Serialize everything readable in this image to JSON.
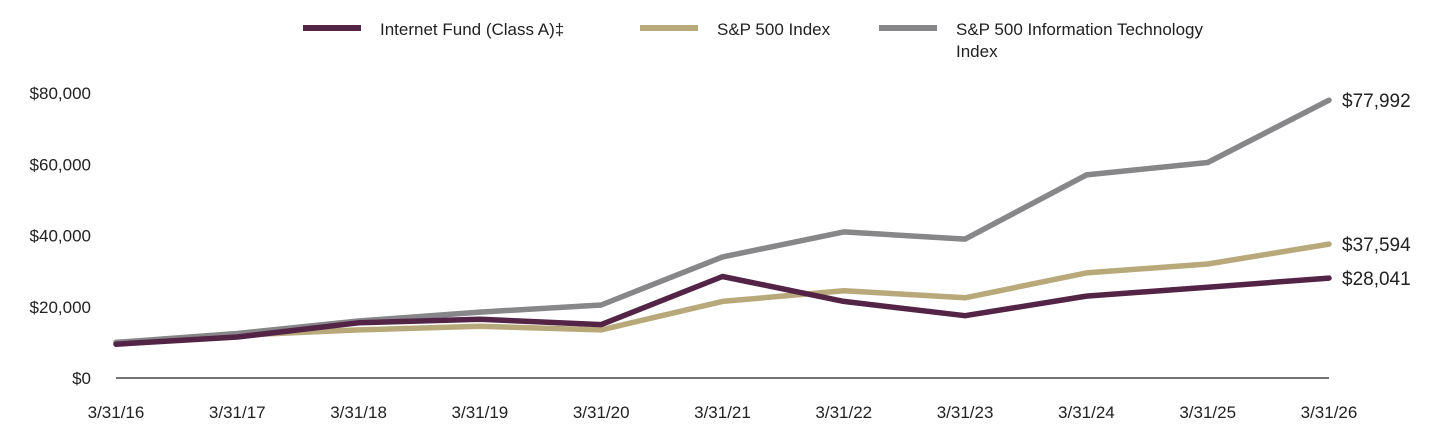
{
  "chart_data": {
    "type": "line",
    "title": "",
    "xlabel": "",
    "ylabel": "",
    "categories": [
      "3/31/16",
      "3/31/17",
      "3/31/18",
      "3/31/19",
      "3/31/20",
      "3/31/21",
      "3/31/22",
      "3/31/23",
      "3/31/24",
      "3/31/25",
      "3/31/26"
    ],
    "y_ticks": [
      "$0",
      "$20,000",
      "$40,000",
      "$60,000",
      "$80,000"
    ],
    "ylim": [
      0,
      80000
    ],
    "grid": false,
    "legend_position": "top",
    "series": [
      {
        "name": "Internet Fund (Class A)‡",
        "color": "#542447",
        "values": [
          9500,
          11500,
          15500,
          16500,
          15000,
          28500,
          21500,
          17500,
          23000,
          25500,
          28041
        ],
        "end_label": "$28,041"
      },
      {
        "name": "S&P 500 Index",
        "color": "#b8a97b",
        "values": [
          10000,
          12000,
          13500,
          14500,
          13500,
          21500,
          24500,
          22500,
          29500,
          32000,
          37594
        ],
        "end_label": "$37,594"
      },
      {
        "name": "S&P 500 Information Technology Index",
        "color": "#87878a",
        "values": [
          10000,
          12500,
          16000,
          18500,
          20500,
          34000,
          41000,
          39000,
          57000,
          60500,
          77992
        ],
        "end_label": "$77,992"
      }
    ]
  }
}
